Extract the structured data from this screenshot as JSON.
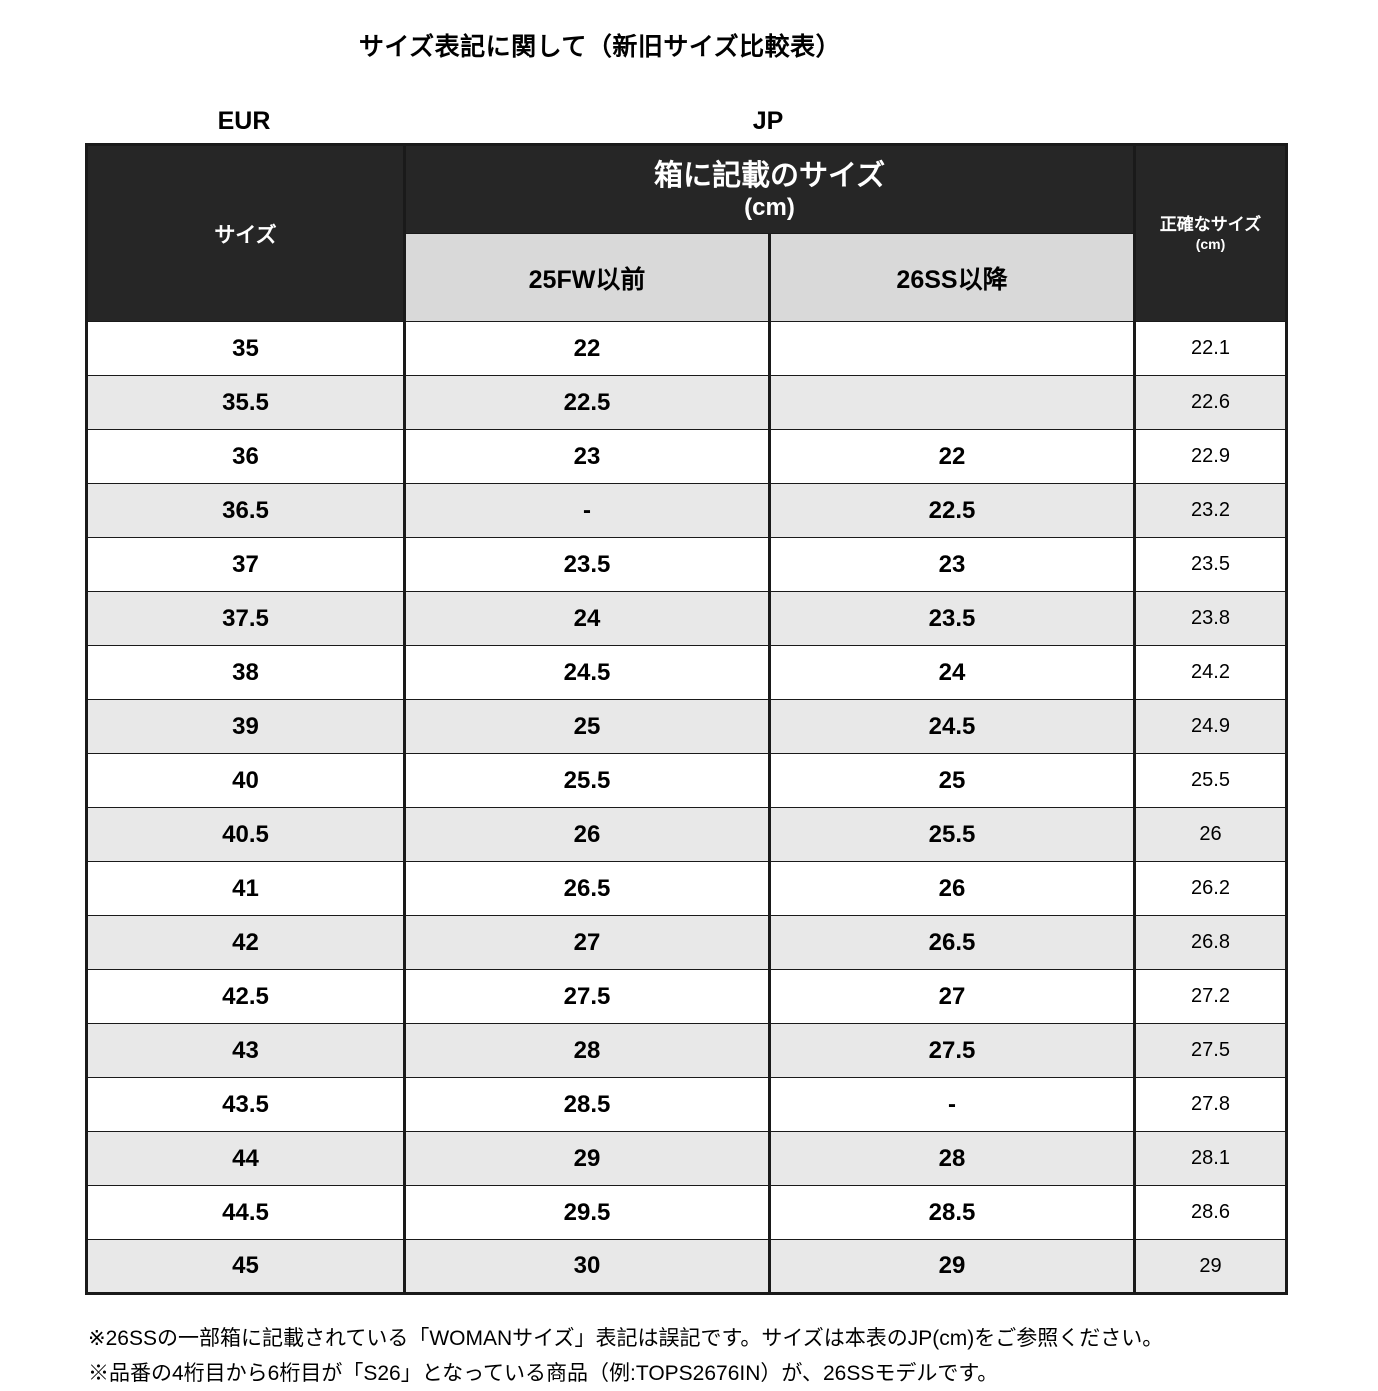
{
  "page": {
    "title": "サイズ表記に関して（新旧サイズ比較表）"
  },
  "table": {
    "group_labels": {
      "eur": "EUR",
      "jp": "JP"
    },
    "headers": {
      "size": "サイズ",
      "box_line1": "箱に記載のサイズ",
      "box_line2": "(cm)",
      "col_25fw": "25FW以前",
      "col_26ss": "26SS以降",
      "accurate_line1": "正確なサイズ",
      "accurate_line2": "(cm)"
    },
    "rows": [
      {
        "eur": "35",
        "fw25": "22",
        "ss26": "",
        "exact": "22.1"
      },
      {
        "eur": "35.5",
        "fw25": "22.5",
        "ss26": "",
        "exact": "22.6"
      },
      {
        "eur": "36",
        "fw25": "23",
        "ss26": "22",
        "exact": "22.9"
      },
      {
        "eur": "36.5",
        "fw25": "-",
        "ss26": "22.5",
        "exact": "23.2"
      },
      {
        "eur": "37",
        "fw25": "23.5",
        "ss26": "23",
        "exact": "23.5"
      },
      {
        "eur": "37.5",
        "fw25": "24",
        "ss26": "23.5",
        "exact": "23.8"
      },
      {
        "eur": "38",
        "fw25": "24.5",
        "ss26": "24",
        "exact": "24.2"
      },
      {
        "eur": "39",
        "fw25": "25",
        "ss26": "24.5",
        "exact": "24.9"
      },
      {
        "eur": "40",
        "fw25": "25.5",
        "ss26": "25",
        "exact": "25.5"
      },
      {
        "eur": "40.5",
        "fw25": "26",
        "ss26": "25.5",
        "exact": "26"
      },
      {
        "eur": "41",
        "fw25": "26.5",
        "ss26": "26",
        "exact": "26.2"
      },
      {
        "eur": "42",
        "fw25": "27",
        "ss26": "26.5",
        "exact": "26.8"
      },
      {
        "eur": "42.5",
        "fw25": "27.5",
        "ss26": "27",
        "exact": "27.2"
      },
      {
        "eur": "43",
        "fw25": "28",
        "ss26": "27.5",
        "exact": "27.5"
      },
      {
        "eur": "43.5",
        "fw25": "28.5",
        "ss26": "-",
        "exact": "27.8"
      },
      {
        "eur": "44",
        "fw25": "29",
        "ss26": "28",
        "exact": "28.1"
      },
      {
        "eur": "44.5",
        "fw25": "29.5",
        "ss26": "28.5",
        "exact": "28.6"
      },
      {
        "eur": "45",
        "fw25": "30",
        "ss26": "29",
        "exact": "29"
      }
    ]
  },
  "notes": [
    "※26SSの一部箱に記載されている「WOMANサイズ」表記は誤記です。サイズは本表のJP(cm)をご参照ください。",
    "※品番の4桁目から6桁目が「S26」となっている商品（例:TOPS2676IN）が、26SSモデルです。"
  ],
  "colors": {
    "header_dark": "#262626",
    "subheader_gray": "#d9d9d9",
    "alt_row_gray": "#e8e8e8",
    "border": "#1a1a1a"
  }
}
